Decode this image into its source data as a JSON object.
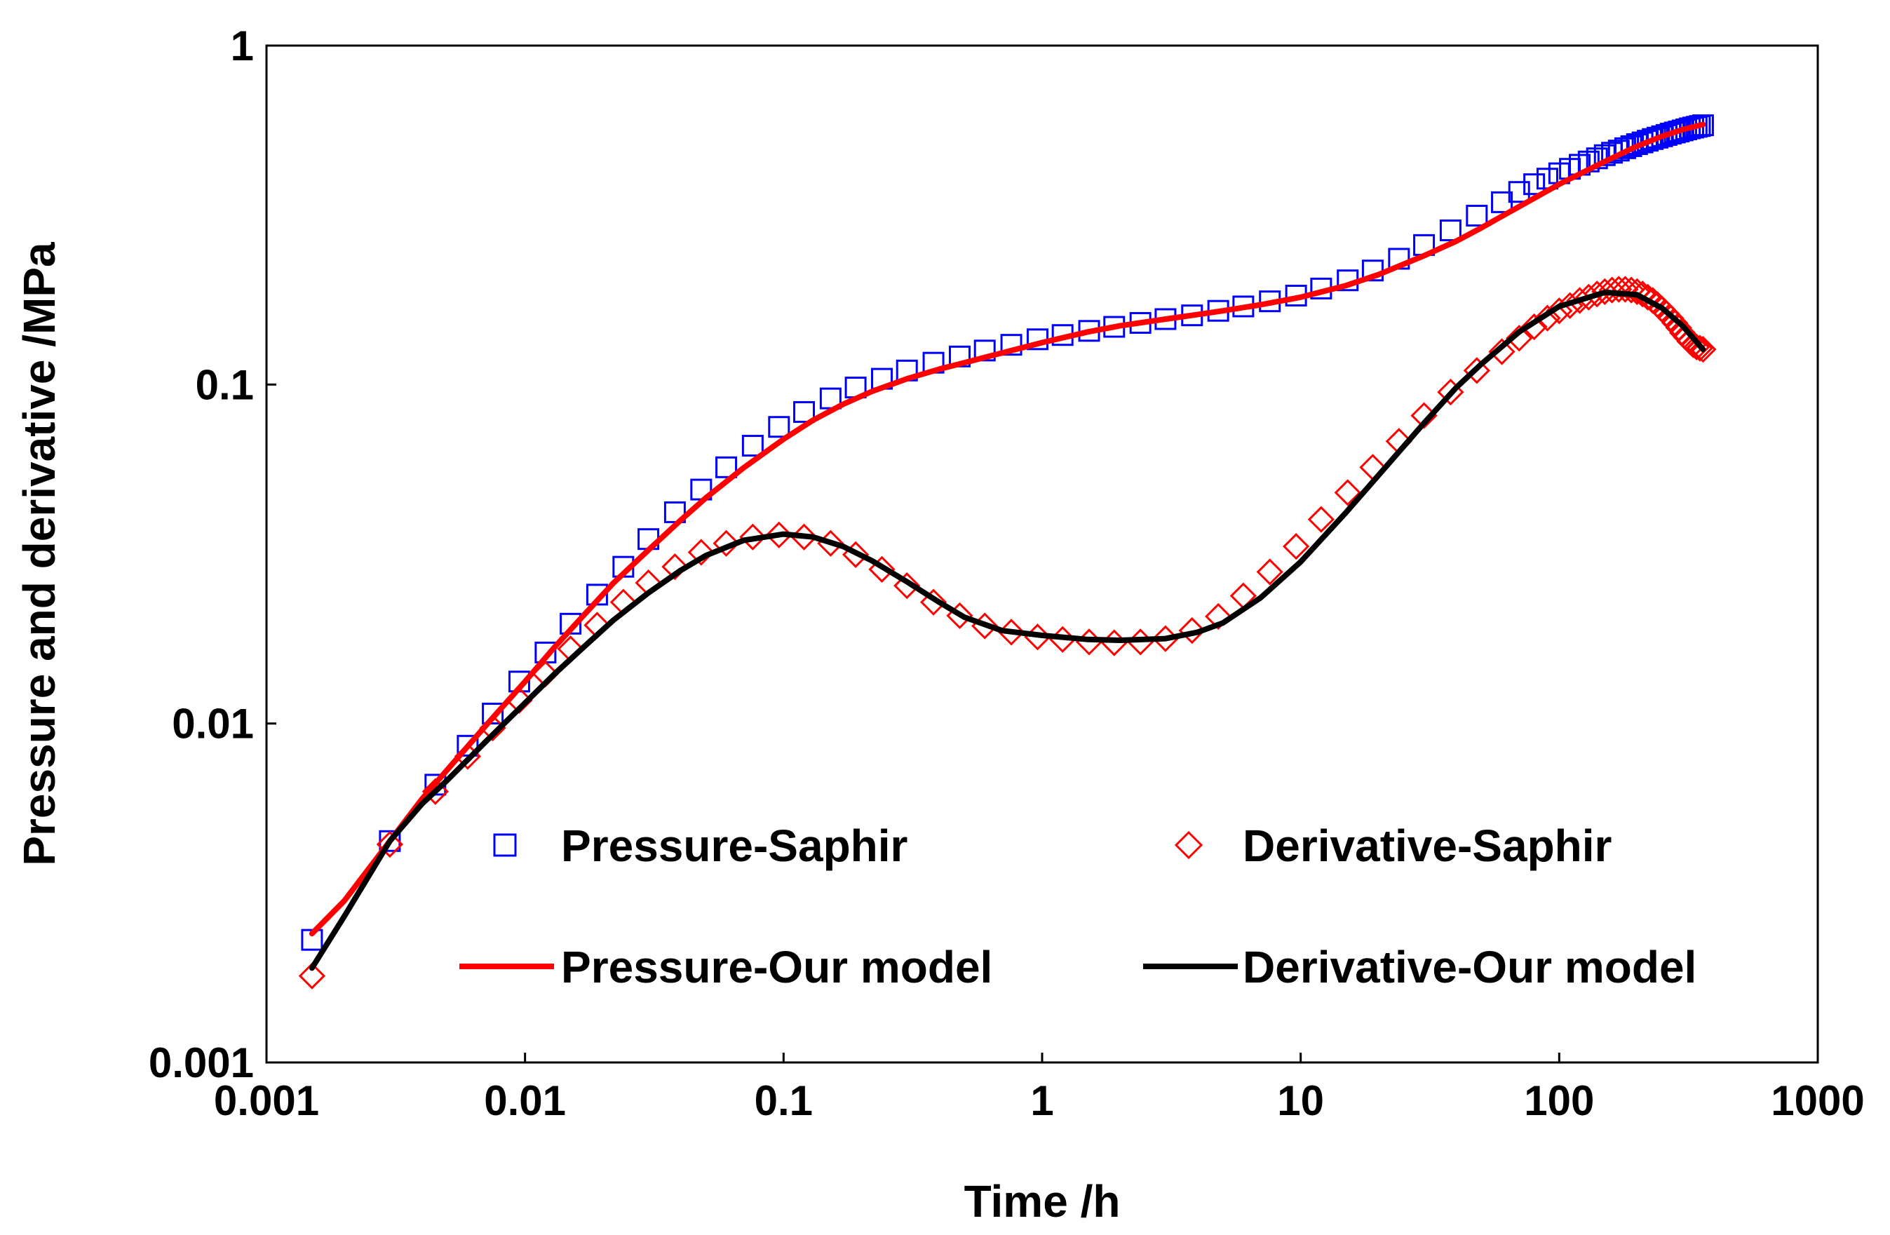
{
  "chart_data": {
    "type": "scatter",
    "title": "",
    "xlabel": "Time /h",
    "ylabel": "Pressure  and derivative /MPa",
    "xscale": "log",
    "yscale": "log",
    "xlim": [
      0.001,
      1000
    ],
    "ylim": [
      0.001,
      1
    ],
    "grid": false,
    "legend_placement": "lower-center, two columns",
    "x_tick_labels": [
      "0.001",
      "0.01",
      "0.1",
      "1",
      "10",
      "100",
      "1000"
    ],
    "y_tick_labels": [
      "0.001",
      "0.01",
      "0.1",
      "1"
    ],
    "colors": {
      "pressure_saphir": "#0000ff",
      "derivative_saphir": "#ff0000",
      "pressure_model": "#ff0000",
      "derivative_model": "#000000",
      "axes": "#000000",
      "background": "#ffffff"
    },
    "series": [
      {
        "name": "Pressure-Saphir",
        "style": "open-square-marker",
        "x": [
          0.0015,
          0.003,
          0.0045,
          0.006,
          0.0075,
          0.0095,
          0.012,
          0.015,
          0.019,
          0.024,
          0.03,
          0.038,
          0.048,
          0.06,
          0.076,
          0.096,
          0.12,
          0.152,
          0.19,
          0.24,
          0.3,
          0.38,
          0.48,
          0.6,
          0.76,
          0.96,
          1.2,
          1.52,
          1.9,
          2.4,
          3.0,
          3.8,
          4.8,
          6.0,
          7.6,
          9.6,
          12.0,
          15.2,
          19.0,
          24.0,
          30.0,
          38.0,
          48.0,
          60.0,
          70.0,
          80.0,
          90.0,
          100.0,
          110.0,
          120.0,
          130.0,
          140.0,
          150.0,
          160.0,
          170.0,
          180.0,
          190.0,
          200.0,
          210.0,
          220.0,
          230.0,
          240.0,
          250.0,
          260.0,
          270.0,
          280.0,
          290.0,
          300.0,
          310.0,
          320.0,
          330.0,
          340.0,
          350.0,
          360.0
        ],
        "y": [
          0.0023,
          0.0045,
          0.0066,
          0.0086,
          0.0107,
          0.0133,
          0.0162,
          0.0197,
          0.024,
          0.029,
          0.035,
          0.042,
          0.049,
          0.057,
          0.066,
          0.075,
          0.083,
          0.091,
          0.098,
          0.104,
          0.11,
          0.116,
          0.121,
          0.126,
          0.131,
          0.136,
          0.14,
          0.144,
          0.148,
          0.152,
          0.156,
          0.16,
          0.165,
          0.17,
          0.176,
          0.183,
          0.192,
          0.203,
          0.217,
          0.235,
          0.258,
          0.285,
          0.315,
          0.345,
          0.37,
          0.39,
          0.405,
          0.42,
          0.433,
          0.445,
          0.455,
          0.465,
          0.475,
          0.483,
          0.49,
          0.498,
          0.505,
          0.512,
          0.518,
          0.524,
          0.53,
          0.535,
          0.54,
          0.545,
          0.55,
          0.554,
          0.558,
          0.562,
          0.566,
          0.57,
          0.573,
          0.576,
          0.579,
          0.582
        ]
      },
      {
        "name": "Derivative-Saphir",
        "style": "open-diamond-marker",
        "x": [
          0.0015,
          0.003,
          0.0045,
          0.006,
          0.0075,
          0.0095,
          0.012,
          0.015,
          0.019,
          0.024,
          0.03,
          0.038,
          0.048,
          0.06,
          0.076,
          0.096,
          0.12,
          0.152,
          0.19,
          0.24,
          0.3,
          0.38,
          0.48,
          0.6,
          0.76,
          0.96,
          1.2,
          1.52,
          1.9,
          2.4,
          3.0,
          3.8,
          4.8,
          6.0,
          7.6,
          9.6,
          12.0,
          15.2,
          19.0,
          24.0,
          30.0,
          38.0,
          48.0,
          60.0,
          70.0,
          80.0,
          90.0,
          100.0,
          110.0,
          120.0,
          130.0,
          140.0,
          150.0,
          160.0,
          170.0,
          180.0,
          190.0,
          200.0,
          210.0,
          220.0,
          230.0,
          240.0,
          250.0,
          260.0,
          270.0,
          280.0,
          290.0,
          300.0,
          310.0,
          320.0,
          330.0,
          340.0,
          350.0,
          360.0
        ],
        "y": [
          0.0018,
          0.0044,
          0.0063,
          0.008,
          0.0097,
          0.0117,
          0.014,
          0.0166,
          0.0195,
          0.0228,
          0.026,
          0.029,
          0.032,
          0.034,
          0.0355,
          0.036,
          0.0355,
          0.034,
          0.0315,
          0.0285,
          0.0255,
          0.0228,
          0.0208,
          0.0194,
          0.0186,
          0.018,
          0.0177,
          0.0174,
          0.0173,
          0.0174,
          0.0178,
          0.0188,
          0.0207,
          0.0238,
          0.028,
          0.0333,
          0.04,
          0.048,
          0.057,
          0.068,
          0.081,
          0.095,
          0.11,
          0.125,
          0.137,
          0.148,
          0.157,
          0.165,
          0.171,
          0.177,
          0.181,
          0.185,
          0.188,
          0.19,
          0.191,
          0.191,
          0.19,
          0.188,
          0.185,
          0.181,
          0.177,
          0.172,
          0.167,
          0.162,
          0.157,
          0.152,
          0.147,
          0.142,
          0.138,
          0.134,
          0.131,
          0.129,
          0.128,
          0.127
        ]
      },
      {
        "name": "Pressure-Our model",
        "style": "solid-line",
        "x": [
          0.0015,
          0.002,
          0.003,
          0.004,
          0.005,
          0.007,
          0.01,
          0.013,
          0.017,
          0.022,
          0.03,
          0.04,
          0.05,
          0.07,
          0.1,
          0.13,
          0.17,
          0.22,
          0.3,
          0.4,
          0.5,
          0.7,
          1.0,
          1.5,
          2.0,
          3.0,
          4.0,
          5.0,
          7.0,
          10.0,
          15.0,
          20.0,
          30.0,
          40.0,
          50.0,
          70.0,
          100.0,
          150.0,
          200.0,
          250.0,
          300.0,
          360.0
        ],
        "y": [
          0.0024,
          0.003,
          0.0045,
          0.006,
          0.0073,
          0.0098,
          0.0133,
          0.0168,
          0.021,
          0.026,
          0.0325,
          0.0398,
          0.0463,
          0.0568,
          0.069,
          0.0785,
          0.0875,
          0.0955,
          0.104,
          0.111,
          0.116,
          0.124,
          0.133,
          0.143,
          0.149,
          0.156,
          0.161,
          0.165,
          0.172,
          0.181,
          0.196,
          0.211,
          0.24,
          0.265,
          0.29,
          0.335,
          0.39,
          0.455,
          0.505,
          0.54,
          0.565,
          0.585
        ]
      },
      {
        "name": "Derivative-Our model",
        "style": "solid-line",
        "x": [
          0.0015,
          0.002,
          0.003,
          0.004,
          0.005,
          0.007,
          0.01,
          0.013,
          0.017,
          0.022,
          0.03,
          0.04,
          0.05,
          0.07,
          0.1,
          0.13,
          0.17,
          0.22,
          0.3,
          0.4,
          0.5,
          0.7,
          1.0,
          1.5,
          2.0,
          3.0,
          4.0,
          5.0,
          7.0,
          10.0,
          15.0,
          20.0,
          30.0,
          40.0,
          50.0,
          70.0,
          100.0,
          150.0,
          200.0,
          250.0,
          300.0,
          360.0
        ],
        "y": [
          0.0019,
          0.0027,
          0.0045,
          0.0058,
          0.0068,
          0.0088,
          0.0115,
          0.014,
          0.0169,
          0.0202,
          0.0243,
          0.0283,
          0.0313,
          0.0347,
          0.0362,
          0.0355,
          0.0333,
          0.0302,
          0.0262,
          0.0228,
          0.0206,
          0.0188,
          0.0182,
          0.0177,
          0.0176,
          0.0178,
          0.0186,
          0.0198,
          0.0235,
          0.03,
          0.042,
          0.054,
          0.077,
          0.098,
          0.115,
          0.143,
          0.17,
          0.187,
          0.184,
          0.168,
          0.149,
          0.127
        ]
      }
    ]
  }
}
